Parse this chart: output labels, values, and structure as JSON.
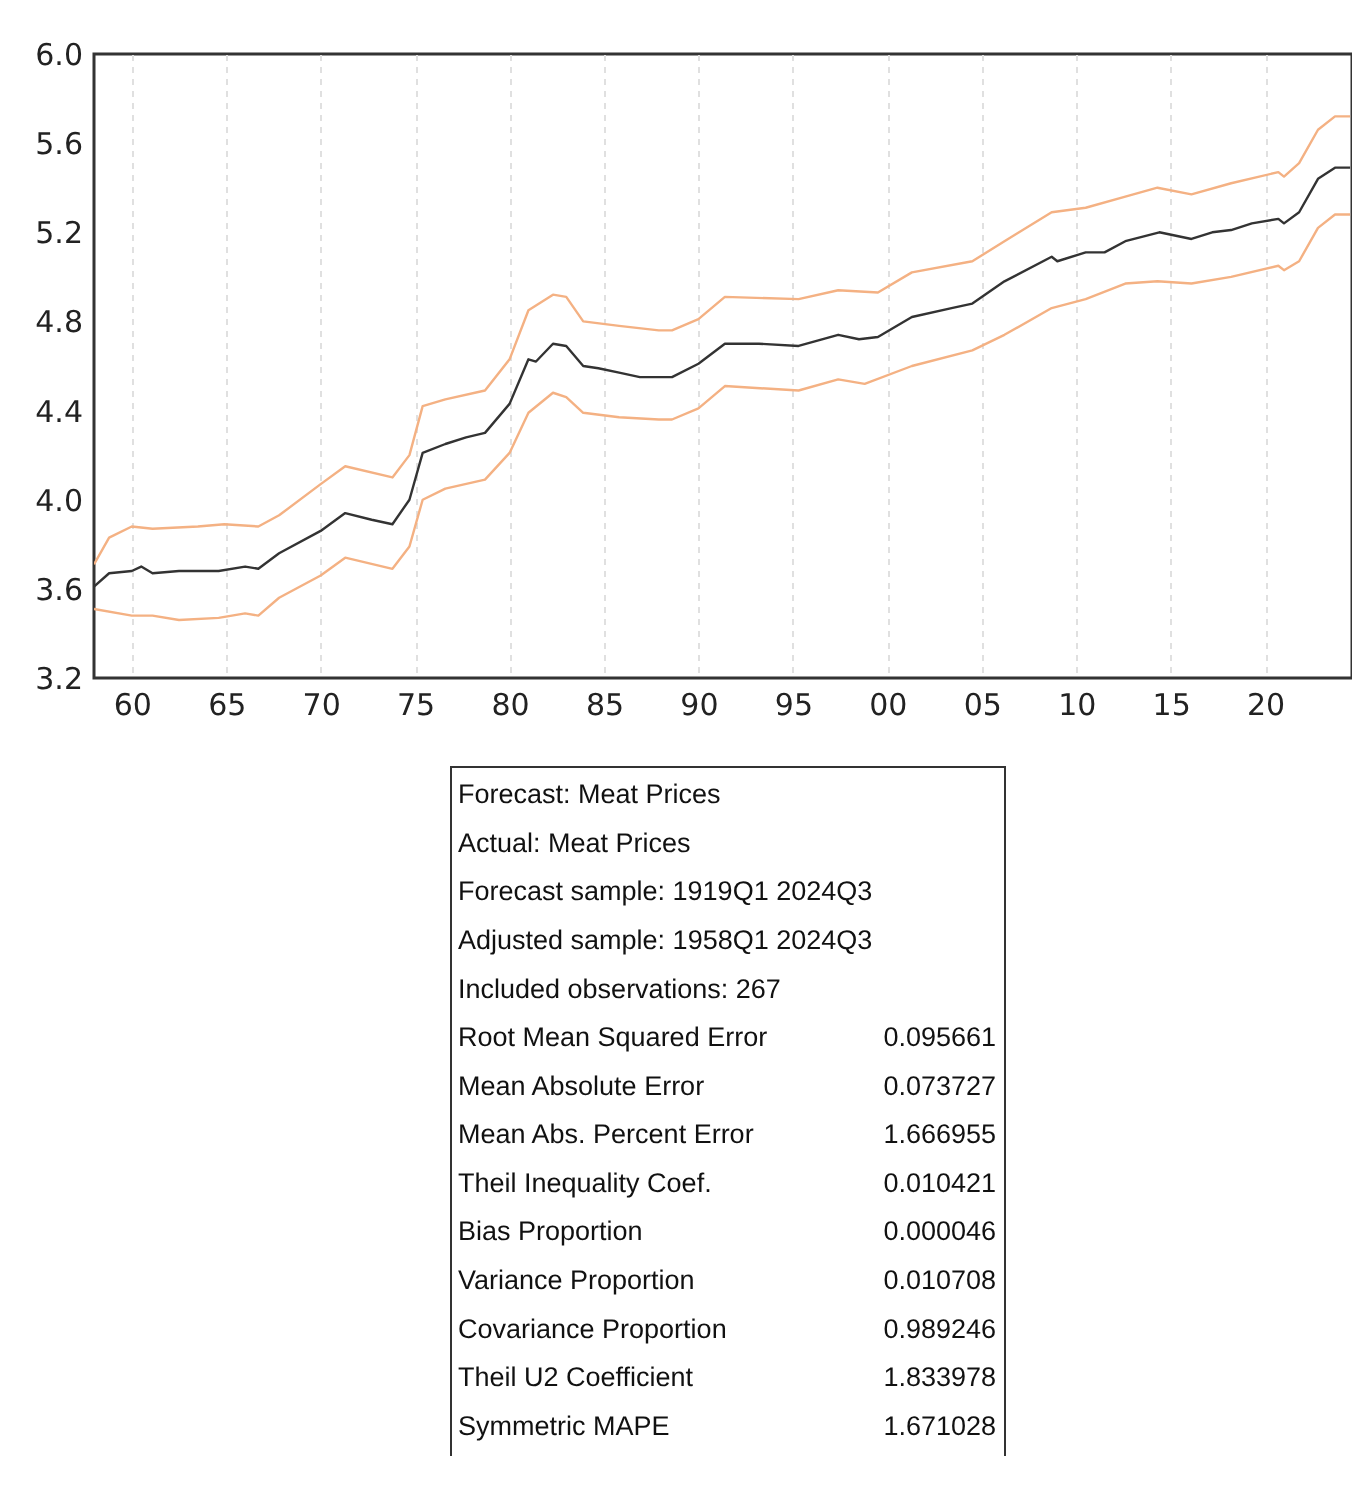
{
  "chart_data": [
    {
      "type": "line",
      "xlim": [
        1958,
        2024.6
      ],
      "ylim": [
        3.2,
        6.0
      ],
      "xticks": [
        {
          "value": 1960,
          "label": "60"
        },
        {
          "value": 1965,
          "label": "65"
        },
        {
          "value": 1970,
          "label": "70"
        },
        {
          "value": 1975,
          "label": "75"
        },
        {
          "value": 1980,
          "label": "80"
        },
        {
          "value": 1985,
          "label": "85"
        },
        {
          "value": 1990,
          "label": "90"
        },
        {
          "value": 1995,
          "label": "95"
        },
        {
          "value": 2000,
          "label": "00"
        },
        {
          "value": 2005,
          "label": "05"
        },
        {
          "value": 2010,
          "label": "10"
        },
        {
          "value": 2015,
          "label": "15"
        },
        {
          "value": 2020,
          "label": "20"
        }
      ],
      "yticks": [
        {
          "value": 3.2,
          "label": "3.2"
        },
        {
          "value": 3.6,
          "label": "3.6"
        },
        {
          "value": 4.0,
          "label": "4.0"
        },
        {
          "value": 4.4,
          "label": "4.4"
        },
        {
          "value": 4.8,
          "label": "4.8"
        },
        {
          "value": 5.2,
          "label": "5.2"
        },
        {
          "value": 5.6,
          "label": "5.6"
        },
        {
          "value": 6.0,
          "label": "6.0"
        }
      ],
      "grid": "x",
      "legend": false,
      "series": [
        {
          "color": "#f4b183",
          "x": [
            1958.0,
            1958.8,
            1960,
            1961.1,
            1963.5,
            1964.9,
            1966.7,
            1967.8,
            1970.0,
            1971.3,
            1973.8,
            1974.7,
            1975.4,
            1976.6,
            1978.7,
            1980.0,
            1981.0,
            1982.3,
            1983.0,
            1983.9,
            1985.8,
            1987.9,
            1988.6,
            1990,
            1991.4,
            1995.3,
            1997.4,
            1999.5,
            2001.3,
            2004.5,
            2006.2,
            2008.7,
            2010.5,
            2012.6,
            2014.3,
            2016.1,
            2018.2,
            2020.7,
            2021.0,
            2021.8,
            2022.8,
            2023.7,
            2024.5
          ],
          "values": [
            3.71,
            3.83,
            3.88,
            3.87,
            3.88,
            3.89,
            3.88,
            3.93,
            4.07,
            4.15,
            4.1,
            4.2,
            4.42,
            4.45,
            4.49,
            4.63,
            4.85,
            4.92,
            4.91,
            4.8,
            4.78,
            4.76,
            4.76,
            4.81,
            4.91,
            4.9,
            4.94,
            4.93,
            5.02,
            5.07,
            5.16,
            5.29,
            5.31,
            5.36,
            5.4,
            5.37,
            5.42,
            5.47,
            5.45,
            5.51,
            5.66,
            5.72,
            5.72
          ]
        },
        {
          "color": "#f4b183",
          "x": [
            1958.0,
            1960,
            1961.1,
            1962.5,
            1964.6,
            1966.0,
            1966.7,
            1967.8,
            1970.0,
            1971.3,
            1973.8,
            1974.7,
            1975.4,
            1976.6,
            1978.7,
            1980.0,
            1981.0,
            1982.3,
            1983.0,
            1983.9,
            1985.8,
            1987.9,
            1988.6,
            1990,
            1991.4,
            1995.3,
            1997.4,
            1998.8,
            2001.3,
            2004.5,
            2006.2,
            2008.7,
            2010.5,
            2012.6,
            2014.3,
            2016.1,
            2018.2,
            2020.7,
            2021.0,
            2021.8,
            2022.8,
            2023.7,
            2024.5
          ],
          "values": [
            3.51,
            3.48,
            3.48,
            3.46,
            3.47,
            3.49,
            3.48,
            3.56,
            3.66,
            3.74,
            3.69,
            3.79,
            4.0,
            4.05,
            4.09,
            4.21,
            4.39,
            4.48,
            4.46,
            4.39,
            4.37,
            4.36,
            4.36,
            4.41,
            4.51,
            4.49,
            4.54,
            4.52,
            4.6,
            4.67,
            4.74,
            4.86,
            4.9,
            4.97,
            4.98,
            4.97,
            5.0,
            5.05,
            5.03,
            5.07,
            5.22,
            5.28,
            5.28
          ]
        },
        {
          "color": "#333333",
          "x": [
            1958.0,
            1958.8,
            1960,
            1960.5,
            1961.1,
            1962.5,
            1964.6,
            1966.0,
            1966.7,
            1967.8,
            1970.0,
            1971.3,
            1972.7,
            1973.8,
            1974.7,
            1975.4,
            1976.6,
            1977.7,
            1978.7,
            1980.0,
            1981.0,
            1981.4,
            1982.3,
            1983.0,
            1983.9,
            1984.7,
            1985.8,
            1986.9,
            1988.6,
            1990,
            1991.4,
            1993.2,
            1995.3,
            1997.4,
            1998.5,
            1999.5,
            2001.3,
            2003.4,
            2004.5,
            2006.2,
            2008.7,
            2009.0,
            2010.5,
            2011.5,
            2012.6,
            2014.4,
            2016.1,
            2017.2,
            2018.2,
            2019.3,
            2020.7,
            2021.0,
            2021.8,
            2022.8,
            2023.7,
            2024.5
          ],
          "values": [
            3.61,
            3.67,
            3.68,
            3.7,
            3.67,
            3.68,
            3.68,
            3.7,
            3.69,
            3.76,
            3.86,
            3.94,
            3.91,
            3.89,
            4.0,
            4.21,
            4.25,
            4.28,
            4.3,
            4.43,
            4.63,
            4.62,
            4.7,
            4.69,
            4.6,
            4.59,
            4.57,
            4.55,
            4.55,
            4.61,
            4.7,
            4.7,
            4.69,
            4.74,
            4.72,
            4.73,
            4.82,
            4.86,
            4.88,
            4.98,
            5.09,
            5.07,
            5.11,
            5.11,
            5.16,
            5.2,
            5.17,
            5.2,
            5.21,
            5.24,
            5.26,
            5.24,
            5.29,
            5.44,
            5.49,
            5.49
          ]
        }
      ]
    },
    {
      "type": "other",
      "annotations": [
        "Forecast: Meat Prices",
        "Actual: Meat Prices",
        "Forecast sample: 1919Q1 2024Q3",
        "Adjusted sample: 1958Q1 2024Q3",
        "Included observations: 267",
        "Root Mean Squared Error",
        "0.095661",
        "Mean Absolute Error",
        "0.073727",
        "Mean Abs. Percent Error",
        "1.666955",
        "Theil Inequality Coef.",
        "0.010421",
        "Bias Proportion",
        "0.000046",
        "Variance Proportion",
        "0.010708",
        "Covariance Proportion",
        "0.989246",
        "Theil U2 Coefficient",
        "1.833978",
        "Symmetric MAPE",
        "1.671028"
      ]
    }
  ]
}
